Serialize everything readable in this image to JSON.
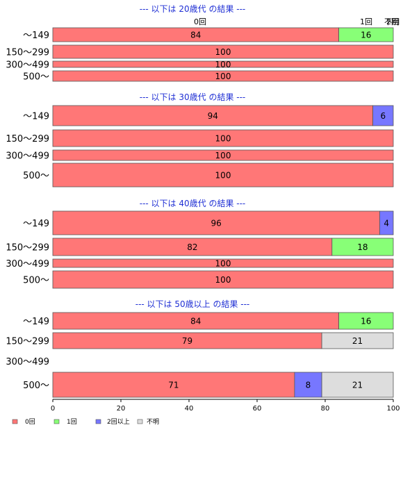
{
  "chart_data": {
    "type": "bar",
    "orientation": "horizontal",
    "stacked": true,
    "xlim": [
      0,
      100
    ],
    "xticks": [
      "0",
      "20",
      "40",
      "60",
      "80",
      "100"
    ],
    "colors": {
      "0回": "#ff7777",
      "1回": "#88ff77",
      "2回以上": "#7777ff",
      "不明": "#dddddd"
    },
    "legend": {
      "position": "bottom-left",
      "entries": [
        "0回",
        "1回",
        "2回以上",
        "不明"
      ]
    },
    "top_category_labels": [
      "0回",
      "1回",
      "2回",
      "不明"
    ],
    "groups": [
      {
        "title": "--- 以下は 20歳代 の結果 ---",
        "rows": [
          {
            "label": "～149",
            "segments": [
              {
                "category": "0回",
                "value": 84
              },
              {
                "category": "1回",
                "value": 16
              }
            ]
          },
          {
            "label": "150～299",
            "segments": [
              {
                "category": "0回",
                "value": 100
              }
            ]
          },
          {
            "label": "300～499",
            "segments": [
              {
                "category": "0回",
                "value": 100
              }
            ]
          },
          {
            "label": "500～",
            "segments": [
              {
                "category": "0回",
                "value": 100
              }
            ]
          }
        ]
      },
      {
        "title": "--- 以下は 30歳代 の結果 ---",
        "rows": [
          {
            "label": "～149",
            "segments": [
              {
                "category": "0回",
                "value": 94
              },
              {
                "category": "2回以上",
                "value": 6
              }
            ]
          },
          {
            "label": "150～299",
            "segments": [
              {
                "category": "0回",
                "value": 100
              }
            ]
          },
          {
            "label": "300～499",
            "segments": [
              {
                "category": "0回",
                "value": 100
              }
            ]
          },
          {
            "label": "500～",
            "segments": [
              {
                "category": "0回",
                "value": 100
              }
            ]
          }
        ]
      },
      {
        "title": "--- 以下は 40歳代 の結果 ---",
        "rows": [
          {
            "label": "～149",
            "segments": [
              {
                "category": "0回",
                "value": 96
              },
              {
                "category": "2回以上",
                "value": 4
              }
            ]
          },
          {
            "label": "150～299",
            "segments": [
              {
                "category": "0回",
                "value": 82
              },
              {
                "category": "1回",
                "value": 18
              }
            ]
          },
          {
            "label": "300～499",
            "segments": [
              {
                "category": "0回",
                "value": 100
              }
            ]
          },
          {
            "label": "500～",
            "segments": [
              {
                "category": "0回",
                "value": 100
              }
            ]
          }
        ]
      },
      {
        "title": "--- 以下は 50歳以上 の結果 ---",
        "rows": [
          {
            "label": "～149",
            "segments": [
              {
                "category": "0回",
                "value": 84
              },
              {
                "category": "1回",
                "value": 16
              }
            ]
          },
          {
            "label": "150～299",
            "segments": [
              {
                "category": "0回",
                "value": 79
              },
              {
                "category": "不明",
                "value": 21
              }
            ]
          },
          {
            "label": "300～499",
            "segments": []
          },
          {
            "label": "500～",
            "segments": [
              {
                "category": "0回",
                "value": 71
              },
              {
                "category": "2回以上",
                "value": 8
              },
              {
                "category": "不明",
                "value": 21
              }
            ]
          }
        ]
      }
    ]
  }
}
